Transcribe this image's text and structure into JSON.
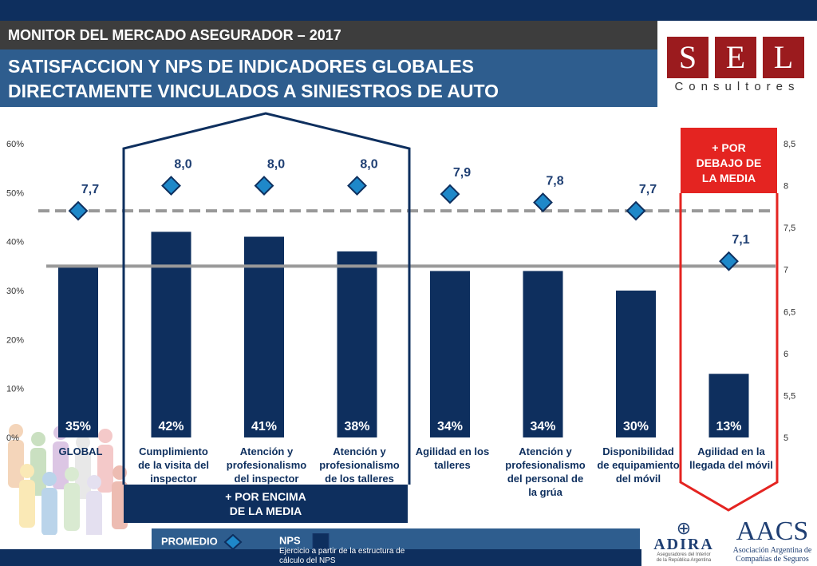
{
  "header": {
    "monitor_label": "MONITOR DEL MERCADO ASEGURADOR – 2017",
    "title_line1": "SATISFACCION Y NPS DE INDICADORES GLOBALES",
    "title_line2": "DIRECTAMENTE VINCULADOS A SINIESTROS DE AUTO"
  },
  "logo": {
    "letters": [
      "S",
      "E",
      "L"
    ],
    "subtitle": "Consultores",
    "color": "#9b1b1e"
  },
  "chart_data": {
    "type": "bar",
    "categories": [
      [
        "GLOBAL"
      ],
      [
        "Cumplimiento",
        "de la visita del",
        "inspector"
      ],
      [
        "Atención y",
        "profesionalismo",
        "del inspector"
      ],
      [
        "Atención y",
        "profesionalismo",
        "de los talleres"
      ],
      [
        "Agilidad en los",
        "talleres"
      ],
      [
        "Atención y",
        "profesionalismo",
        "del personal de",
        "la grúa"
      ],
      [
        "Disponibilidad",
        "de equipamiento",
        "del móvil"
      ],
      [
        "Agilidad en la",
        "llegada del móvil"
      ]
    ],
    "series": [
      {
        "name": "NPS",
        "axis": "left",
        "values": [
          35,
          42,
          41,
          38,
          34,
          34,
          30,
          13
        ],
        "labels": [
          "35%",
          "42%",
          "41%",
          "38%",
          "34%",
          "34%",
          "30%",
          "13%"
        ],
        "color": "#0e2f5e"
      },
      {
        "name": "PROMEDIO",
        "axis": "right",
        "values": [
          7.7,
          8.0,
          8.0,
          8.0,
          7.9,
          7.8,
          7.7,
          7.1
        ],
        "labels": [
          "7,7",
          "8,0",
          "8,0",
          "8,0",
          "7,9",
          "7,8",
          "7,7",
          "7,1"
        ],
        "color": "#1e88c9"
      }
    ],
    "left_axis": {
      "ylim": [
        0,
        60
      ],
      "ticks": [
        0,
        10,
        20,
        30,
        40,
        50,
        60
      ],
      "tick_labels": [
        "0%",
        "10%",
        "20%",
        "30%",
        "40%",
        "50%",
        "60%"
      ]
    },
    "right_axis": {
      "ylim": [
        5,
        8.5
      ],
      "ticks": [
        5,
        5.5,
        6,
        6.5,
        7,
        7.5,
        8,
        8.5
      ],
      "tick_labels": [
        "5",
        "5,5",
        "6",
        "6,5",
        "7",
        "7,5",
        "8",
        "8,5"
      ]
    },
    "reference_lines": [
      {
        "style": "solid",
        "axis": "left",
        "value": 35,
        "color": "#999999"
      },
      {
        "style": "dashed",
        "axis": "right",
        "value": 7.7,
        "color": "#999999"
      }
    ],
    "highlights": [
      {
        "label_lines": [
          "+ POR ENCIMA",
          "DE LA MEDIA"
        ],
        "categories": [
          1,
          2,
          3
        ],
        "color": "#0e2f5e"
      },
      {
        "label_lines": [
          "+ POR",
          "DEBAJO DE",
          "LA MEDIA"
        ],
        "categories": [
          7
        ],
        "color": "#e42421"
      }
    ]
  },
  "legend": {
    "promedio": "PROMEDIO",
    "nps": "NPS",
    "nota": "Ejercicio a partir de la estructura de cálculo del NPS"
  },
  "partners": {
    "adira_name": "ADIRA",
    "adira_desc_1": "Aseguradores del Interior",
    "adira_desc_2": "de la República Argentina",
    "aacs_name": "AACS",
    "aacs_desc_1": "Asociación Argentina de",
    "aacs_desc_2": "Compañías de Seguros"
  }
}
